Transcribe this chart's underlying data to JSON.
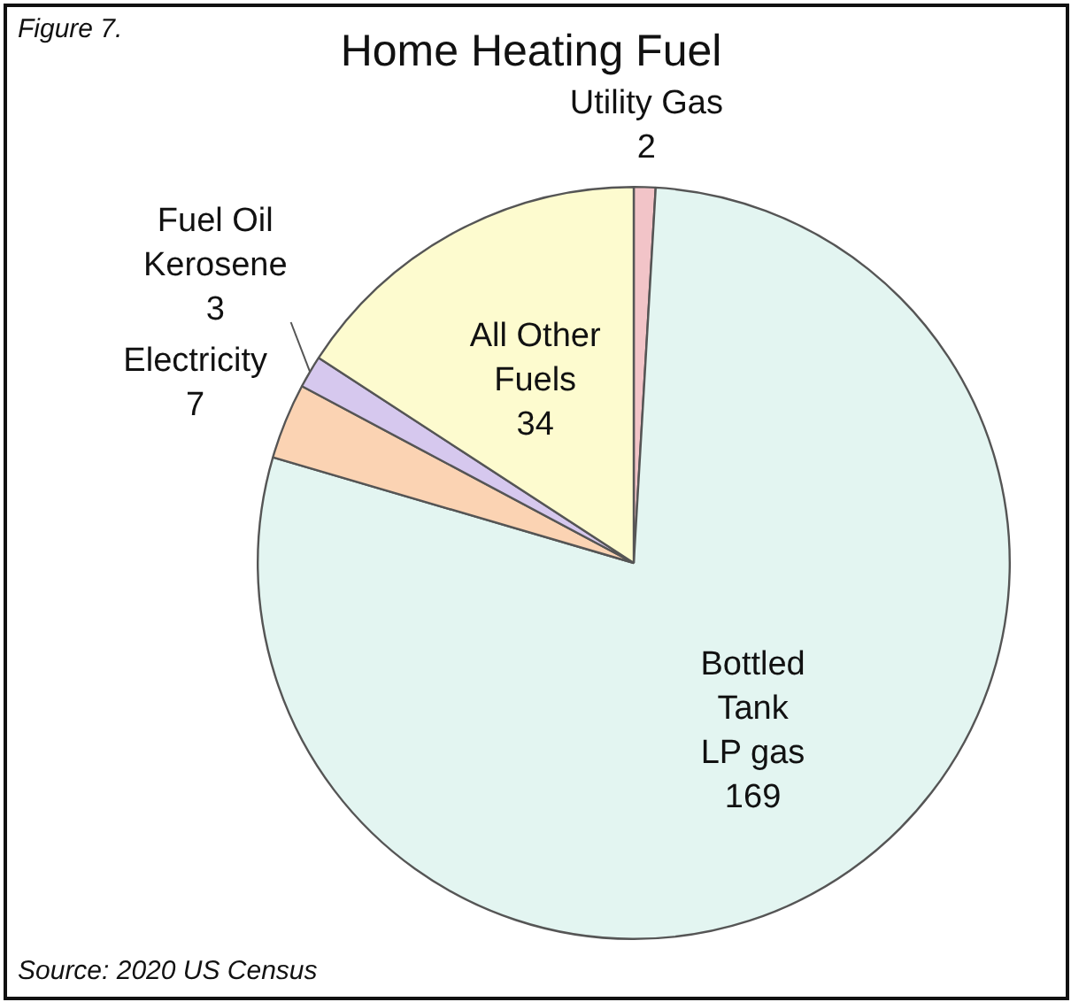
{
  "chart_data": {
    "type": "pie",
    "title": "Home Heating Fuel",
    "categories": [
      "Utility Gas",
      "Bottled\nTank\nLP gas",
      "Electricity",
      "Fuel Oil\nKerosene",
      "All Other\nFuels"
    ],
    "values": [
      2,
      169,
      7,
      3,
      34
    ],
    "colors": [
      "#f2c4c8",
      "#e3f5f1",
      "#fbd3b3",
      "#d6c8ee",
      "#fdfbcf"
    ],
    "data_labels": true,
    "legend": false,
    "annotations": [
      "Figure 7.",
      "Source: 2020 US Census"
    ]
  }
}
